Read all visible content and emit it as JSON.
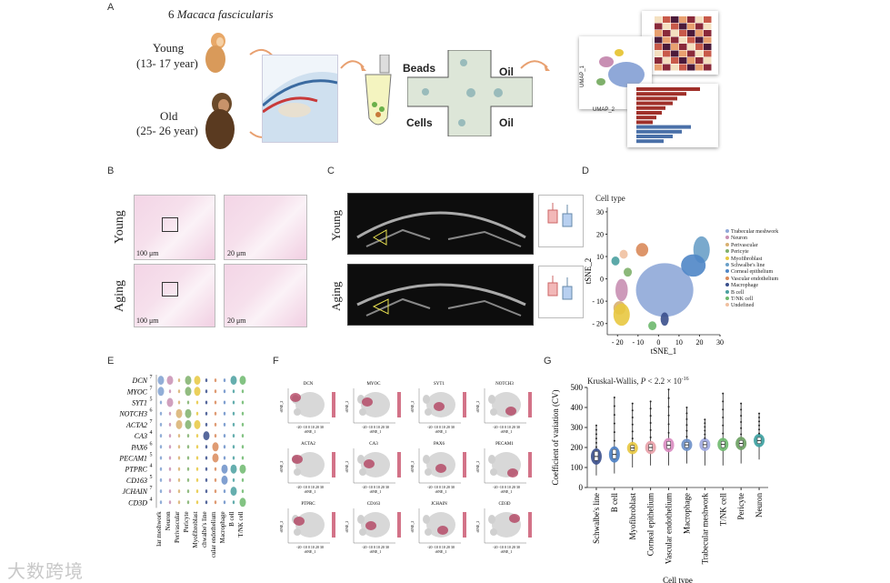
{
  "panels": {
    "a": {
      "label": "A",
      "title_prefix": "6 ",
      "title_species": "Macaca fascicularis",
      "young_label": "Young",
      "young_age": "(13- 17 year)",
      "old_label": "Old",
      "old_age": "(25- 26 year)",
      "beads": "Beads",
      "cells": "Cells",
      "oil_top": "Oil",
      "oil_bottom": "Oil",
      "umap1": "UMAP_1",
      "umap2": "UMAP_2"
    },
    "b": {
      "label": "B",
      "row1": "Young",
      "row2": "Aging",
      "scale1": "100 μm",
      "scale2": "20 μm",
      "scale3": "100 μm",
      "scale4": "20 μm"
    },
    "c": {
      "label": "C",
      "row1": "Young",
      "row2": "Aging",
      "tick1": "tissue"
    },
    "d": {
      "label": "D",
      "legend_title": "Cell type",
      "xlabel": "tSNE_1",
      "ylabel": "tSNE_2"
    },
    "e": {
      "label": "E"
    },
    "f": {
      "label": "F"
    },
    "g": {
      "label": "G",
      "stat_prefix": "Kruskal-Wallis, ",
      "stat_italic": "P",
      "stat_suffix": " < 2.2 × 10",
      "stat_exp": "-16"
    }
  },
  "watermark": "大数跨境",
  "chart_data": [
    {
      "type": "scatter",
      "panel": "D",
      "title": "Cell type",
      "xlabel": "tSNE_1",
      "ylabel": "tSNE_2",
      "xticks": [
        "- 20",
        "- 10",
        "0",
        "10",
        "20",
        "30"
      ],
      "yticks": [
        "30",
        "20",
        "10",
        "0",
        "- 10",
        "- 20"
      ],
      "xlim": [
        -25,
        30
      ],
      "ylim": [
        -25,
        32
      ],
      "series": [
        {
          "name": "Trabecular meshwork",
          "color": "#8fa8d8",
          "cx": 3,
          "cy": -5,
          "rx": 14,
          "ry": 12
        },
        {
          "name": "Neuron",
          "color": "#c88fb3",
          "cx": -18,
          "cy": -5,
          "rx": 3,
          "ry": 5
        },
        {
          "name": "Perivascular",
          "color": "#d8b070",
          "cx": -19,
          "cy": -13,
          "rx": 3,
          "ry": 3
        },
        {
          "name": "Pericyte",
          "color": "#7fb06b",
          "cx": -15,
          "cy": 3,
          "rx": 2,
          "ry": 2
        },
        {
          "name": "Myofibroblast",
          "color": "#e8c840",
          "cx": -18,
          "cy": -16,
          "rx": 4,
          "ry": 5
        },
        {
          "name": "Schwalbe's line",
          "color": "#6aa0c8",
          "cx": 21,
          "cy": 13,
          "rx": 4,
          "ry": 6
        },
        {
          "name": "Corneal epithelium",
          "color": "#4f86c6",
          "cx": 17,
          "cy": 6,
          "rx": 6,
          "ry": 5
        },
        {
          "name": "Vascular endothelium",
          "color": "#d98a5a",
          "cx": -8,
          "cy": 13,
          "rx": 3,
          "ry": 3
        },
        {
          "name": "Macrophage",
          "color": "#3a4f8c",
          "cx": 3,
          "cy": -18,
          "rx": 2,
          "ry": 3
        },
        {
          "name": "B cell",
          "color": "#4aa0a0",
          "cx": -21,
          "cy": 8,
          "rx": 2,
          "ry": 2
        },
        {
          "name": "T/NK cell",
          "color": "#6db86d",
          "cx": -3,
          "cy": -21,
          "rx": 2,
          "ry": 2
        },
        {
          "name": "Undefined",
          "color": "#f0c0a0",
          "cx": -17,
          "cy": 11,
          "rx": 2,
          "ry": 2
        }
      ]
    },
    {
      "type": "violin",
      "panel": "E",
      "genes": [
        "DCN",
        "MYOC",
        "SYT1",
        "NOTCH3",
        "ACTA2",
        "CA3",
        "PAX6",
        "PECAM1",
        "PTPRC",
        "CD163",
        "JCHAIN",
        "CD3D"
      ],
      "maxes": [
        "7",
        "7",
        "5",
        "6",
        "7",
        "4",
        "6",
        "5",
        "4",
        "5",
        "7",
        "4"
      ],
      "categories": [
        "Trabecular meshwork",
        "Neuron",
        "Perivascular",
        "Pericyte",
        "Myofibroblast",
        "Schwalbe's line",
        "Vascular endothelium",
        "Macrophage",
        "B cell",
        "T/NK cell"
      ],
      "category_labels": [
        "lar meshwork",
        "Neuron",
        "Perivascular",
        "Pericyte",
        "Myofibroblast",
        "chwalbe's line",
        "cular endothelium",
        "Macrophage",
        "B cell",
        "T/NK cell"
      ]
    },
    {
      "type": "scatter",
      "panel": "F",
      "genes": [
        "DCN",
        "MYOC",
        "SYT1",
        "NOTCH3",
        "ACTA2",
        "CA3",
        "PAX6",
        "PECAM1",
        "PTPRC",
        "CD163",
        "JCHAIN",
        "CD3D"
      ],
      "xlabel": "tSNE_1",
      "ylabel": "tSNE_2",
      "xticks": "-20 -10 0 10 20 30"
    },
    {
      "type": "box",
      "panel": "G",
      "title": "Kruskal-Wallis, P < 2.2 × 10-16",
      "xlabel": "Cell type",
      "ylabel": "Coefficient of variation (CV)",
      "ylim": [
        0,
        500
      ],
      "yticks": [
        0,
        100,
        200,
        300,
        400,
        500
      ],
      "categories": [
        "Schwalbe's line",
        "B cell",
        "Myofibroblast",
        "Corneal epithelium",
        "Vascular endothelium",
        "Macrophage",
        "Trabecular meshwork",
        "T/NK cell",
        "Pericyte",
        "Neuron"
      ],
      "medians": [
        155,
        165,
        197,
        200,
        212,
        213,
        214,
        215,
        220,
        235
      ],
      "q1": [
        135,
        145,
        185,
        185,
        195,
        200,
        200,
        200,
        205,
        220
      ],
      "q3": [
        180,
        190,
        210,
        215,
        230,
        225,
        228,
        230,
        235,
        250
      ],
      "min": [
        60,
        70,
        100,
        110,
        110,
        120,
        110,
        110,
        120,
        140
      ],
      "max": [
        310,
        450,
        420,
        430,
        490,
        400,
        340,
        470,
        420,
        370
      ],
      "colors": [
        "#3a4f8c",
        "#4a7ec4",
        "#e8c840",
        "#e8a0a8",
        "#d98ac0",
        "#6b8fc8",
        "#9fa8e0",
        "#6db86d",
        "#6aa060",
        "#3aa0a0"
      ]
    }
  ]
}
